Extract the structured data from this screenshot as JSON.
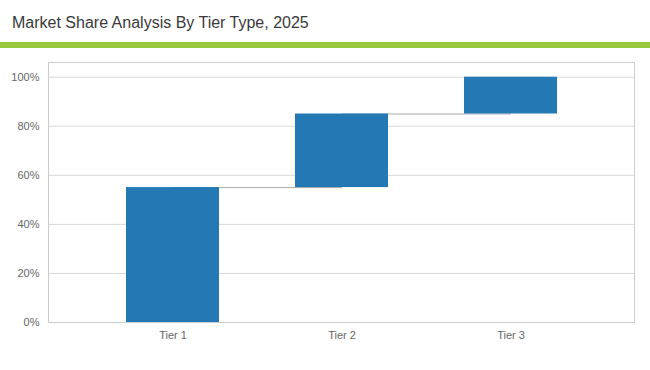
{
  "chart_data": {
    "type": "waterfall",
    "title": "Market Share Analysis By Tier Type, 2025",
    "categories": [
      "Tier 1",
      "Tier 2",
      "Tier 3"
    ],
    "values": [
      55,
      30,
      15
    ],
    "color": "#2478b4",
    "ylim": [
      0,
      106
    ],
    "yticks": [
      {
        "value": 0,
        "label": "0%"
      },
      {
        "value": 20,
        "label": "20%"
      },
      {
        "value": 40,
        "label": "40%"
      },
      {
        "value": 60,
        "label": "60%"
      },
      {
        "value": 80,
        "label": "80%"
      },
      {
        "value": 100,
        "label": "100%"
      }
    ],
    "grid": true
  }
}
